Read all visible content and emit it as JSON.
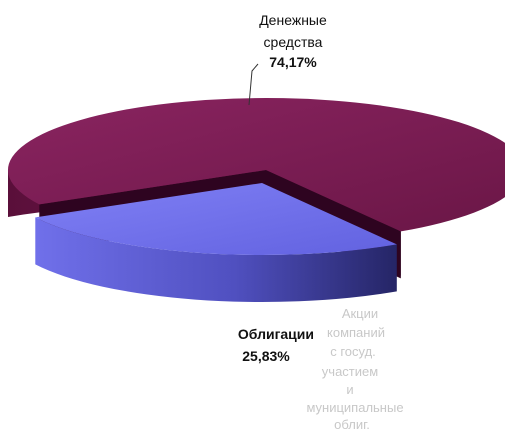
{
  "chart_data": {
    "type": "pie",
    "style": "3d-exploded",
    "slices": [
      {
        "label_lines": [
          "Денежные",
          "средства"
        ],
        "percent_label": "74,17%",
        "value": 74.17,
        "color": "#7a1c52"
      },
      {
        "label_lines": [
          "Облигации"
        ],
        "percent_label": "25,83%",
        "value": 25.83,
        "color": "#7272ee"
      }
    ],
    "faint_label_lines": [
      "Акции",
      "компаний",
      "с госуд.",
      "участием",
      "и",
      "муниципальные",
      "облиг."
    ]
  }
}
